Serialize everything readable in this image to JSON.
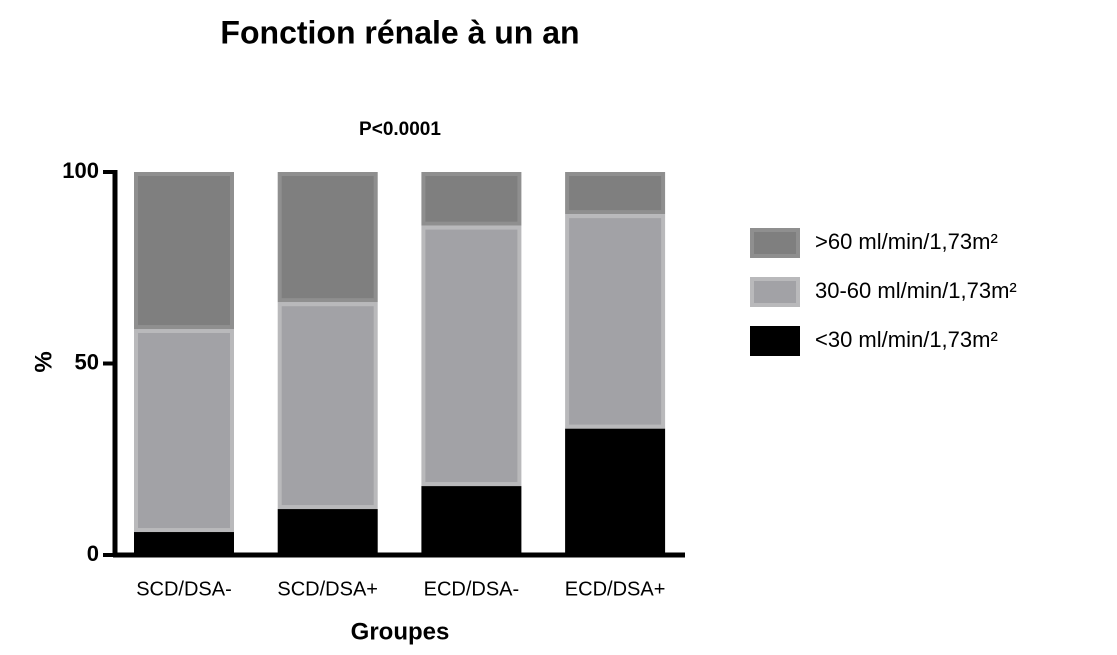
{
  "chart_data": {
    "type": "stacked_bar",
    "title": "Fonction rénale à un an",
    "annotation": "P<0.0001",
    "x_label": "Groupes",
    "y_label": "%",
    "categories": [
      "SCD/DSA-",
      "SCD/DSA+",
      "ECD/DSA-",
      "ECD/DSA+"
    ],
    "series": [
      {
        "name": ">60 ml/min/1,73m²",
        "color": "#7f7f7f",
        "values": [
          41,
          34,
          14,
          11
        ]
      },
      {
        "name": "30-60 ml/min/1,73m²",
        "color": "#a2a2a6",
        "values": [
          53,
          54,
          68,
          56
        ]
      },
      {
        "name": "<30 ml/min/1,73m²",
        "color": "#000000",
        "values": [
          6,
          12,
          18,
          33
        ]
      }
    ],
    "ylim": [
      0,
      100
    ],
    "yticks": [
      0,
      50,
      100
    ],
    "grid": false,
    "legend": "right"
  }
}
